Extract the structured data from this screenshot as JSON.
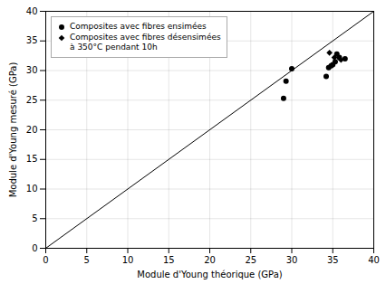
{
  "chart_data": {
    "type": "scatter",
    "xlabel": "Module d'Young théorique (GPa)",
    "ylabel": "Module d'Young mesuré (GPa)",
    "xlim": [
      0,
      40
    ],
    "ylim": [
      0,
      40
    ],
    "xticks": [
      0,
      5,
      10,
      15,
      20,
      25,
      30,
      35,
      40
    ],
    "yticks": [
      0,
      5,
      10,
      15,
      20,
      25,
      30,
      35,
      40
    ],
    "grid": true,
    "legend": "upper left",
    "series": [
      {
        "type": "line",
        "color": "black",
        "x": [
          0,
          40
        ],
        "y": [
          0,
          40
        ]
      },
      {
        "name": "Composites avec fibres ensimées",
        "color": "black",
        "marker": "circle",
        "x": [
          29.0,
          29.3,
          30.0,
          34.2,
          34.5,
          34.8,
          35.0,
          35.3,
          35.5,
          35.8,
          36.5
        ],
        "y": [
          25.3,
          28.2,
          30.3,
          29.0,
          30.5,
          30.8,
          31.0,
          31.5,
          32.8,
          32.2,
          32.0
        ]
      },
      {
        "name": "Composites avec fibres désensimées\nà 350°C pendant 10h",
        "color": "black",
        "marker": "diamond",
        "x": [
          34.6,
          35.2,
          36.0
        ],
        "y": [
          33.0,
          32.2,
          31.8
        ]
      }
    ]
  }
}
